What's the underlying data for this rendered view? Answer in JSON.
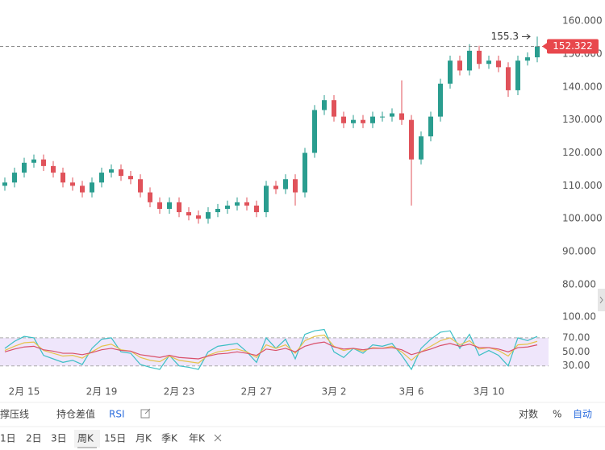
{
  "chart_data": [
    {
      "type": "candlestick",
      "categories": [
        null,
        null,
        "2月 15",
        null,
        null,
        null,
        null,
        null,
        null,
        null,
        "2月 19",
        null,
        null,
        null,
        null,
        null,
        null,
        null,
        "2月 23",
        null,
        null,
        null,
        null,
        null,
        null,
        null,
        "2月 27",
        null,
        null,
        null,
        null,
        null,
        null,
        null,
        "3月 2",
        null,
        null,
        null,
        null,
        null,
        null,
        null,
        "3月 6",
        null,
        null,
        null,
        null,
        null,
        null,
        null,
        "3月 10",
        null,
        null,
        null,
        null,
        null
      ],
      "open": [
        110,
        111,
        114,
        117,
        118,
        116,
        114,
        111,
        110,
        108,
        111,
        114,
        115,
        113,
        112,
        108,
        105,
        103,
        105,
        102,
        101,
        100,
        102,
        103,
        104,
        105,
        104,
        102,
        110,
        109,
        112,
        108,
        120,
        133,
        136,
        131,
        129,
        130,
        129,
        131,
        131,
        132,
        130,
        118,
        125,
        131,
        141,
        148,
        145,
        151,
        147,
        148,
        146,
        139,
        148,
        149
      ],
      "high": [
        112.5,
        115.5,
        118.5,
        119.5,
        119.5,
        117.5,
        115.5,
        112.5,
        111.5,
        112.5,
        115.5,
        116.5,
        116.5,
        114.5,
        113.5,
        109.5,
        106.5,
        106.5,
        106.5,
        103.5,
        102.5,
        103.5,
        104.5,
        105.5,
        106.5,
        106.5,
        105.5,
        111.5,
        111.5,
        113.5,
        113.5,
        121.5,
        134.5,
        137.5,
        137.5,
        132.5,
        131.5,
        131.5,
        132.5,
        132.5,
        133.5,
        142,
        131.5,
        126.5,
        132.5,
        142.5,
        149.5,
        149.5,
        153,
        152.5,
        149.5,
        149.5,
        147.5,
        149.5,
        150.5,
        155.3
      ],
      "low": [
        108.5,
        109.5,
        112.5,
        115.5,
        114.5,
        112.5,
        109.5,
        108.5,
        106.5,
        106.5,
        109.5,
        112.5,
        111.5,
        110.5,
        106.5,
        103.5,
        101.5,
        101.5,
        100.5,
        99.5,
        98.5,
        98.5,
        100.5,
        101.5,
        102.5,
        102.5,
        100.5,
        100.5,
        107.5,
        107.5,
        104,
        106.5,
        118.5,
        131.5,
        129.5,
        127.5,
        127.5,
        127.5,
        127.5,
        129.5,
        129.5,
        128.5,
        104,
        116.5,
        123.5,
        129.5,
        139.5,
        143.5,
        143.5,
        145.5,
        145.5,
        144.5,
        137,
        137.5,
        146.5,
        147.5
      ],
      "close": [
        111,
        114,
        117,
        118,
        116,
        114,
        111,
        110,
        108,
        111,
        114,
        115,
        113,
        112,
        108,
        105,
        103,
        105,
        102,
        101,
        100,
        102,
        103,
        104,
        105,
        104,
        102,
        110,
        109,
        112,
        108,
        120,
        133,
        136,
        131,
        129,
        130,
        129,
        131,
        131,
        132,
        130,
        118,
        125,
        131,
        141,
        148,
        145,
        151,
        147,
        148,
        146,
        139,
        148,
        149,
        152.322
      ],
      "up_color": "#2a9d8f",
      "down_color": "#e0525a",
      "last_price_color": "#e8474c",
      "ylim": [
        74.6,
        166.4
      ],
      "yticks": [
        {
          "value": 80,
          "label": "80.000"
        },
        {
          "value": 90,
          "label": "90.000"
        },
        {
          "value": 100,
          "label": "100.000"
        },
        {
          "value": 110,
          "label": "110.000"
        },
        {
          "value": 120,
          "label": "120.000"
        },
        {
          "value": 130,
          "label": "130.000"
        },
        {
          "value": 140,
          "label": "140.000"
        },
        {
          "value": 150,
          "label": "150.000"
        },
        {
          "value": 160,
          "label": "160.000"
        }
      ],
      "high_annotation": 155.3
    },
    {
      "type": "line",
      "series": [
        {
          "color": "#3bbfc4",
          "values": [
            55,
            65,
            72,
            70,
            45,
            40,
            35,
            38,
            32,
            55,
            68,
            70,
            50,
            48,
            32,
            28,
            25,
            45,
            30,
            28,
            25,
            50,
            58,
            60,
            62,
            50,
            35,
            70,
            55,
            68,
            40,
            75,
            80,
            82,
            50,
            42,
            55,
            48,
            60,
            58,
            62,
            45,
            25,
            55,
            68,
            78,
            80,
            55,
            75,
            45,
            52,
            45,
            30,
            70,
            66,
            72
          ]
        },
        {
          "color": "#e6c34a",
          "values": [
            52,
            58,
            63,
            64,
            52,
            48,
            44,
            45,
            41,
            50,
            58,
            61,
            53,
            51,
            42,
            38,
            36,
            44,
            38,
            36,
            34,
            45,
            50,
            52,
            54,
            50,
            42,
            60,
            55,
            60,
            48,
            66,
            72,
            74,
            58,
            52,
            55,
            51,
            56,
            55,
            58,
            50,
            38,
            50,
            58,
            66,
            70,
            60,
            66,
            54,
            56,
            52,
            44,
            60,
            61,
            65
          ]
        },
        {
          "color": "#d9506a",
          "values": [
            50,
            54,
            57,
            58,
            53,
            51,
            48,
            48,
            46,
            49,
            53,
            55,
            52,
            51,
            46,
            44,
            42,
            45,
            42,
            41,
            40,
            44,
            47,
            48,
            50,
            48,
            45,
            54,
            52,
            55,
            50,
            58,
            62,
            64,
            57,
            54,
            55,
            53,
            55,
            55,
            56,
            53,
            46,
            50,
            54,
            59,
            62,
            58,
            61,
            56,
            56,
            54,
            50,
            56,
            57,
            60
          ]
        }
      ],
      "ylim": [
        17,
        109
      ],
      "yticks": [
        {
          "value": 30,
          "label": "30.00"
        },
        {
          "value": 50,
          "label": "50.00"
        },
        {
          "value": 70,
          "label": "70.00"
        },
        {
          "value": 100,
          "label": "100.00"
        }
      ],
      "band": [
        30,
        70
      ],
      "band_color": "#efe6fb"
    }
  ],
  "toolbar": {
    "left": [
      "撑压线",
      "持仓差值",
      "RSI"
    ],
    "right": [
      "对数",
      "%",
      "自动"
    ]
  },
  "periods": {
    "items": [
      "1日",
      "2日",
      "3日",
      "周K",
      "15日",
      "月K",
      "季K",
      "年K"
    ],
    "selected": 3
  }
}
